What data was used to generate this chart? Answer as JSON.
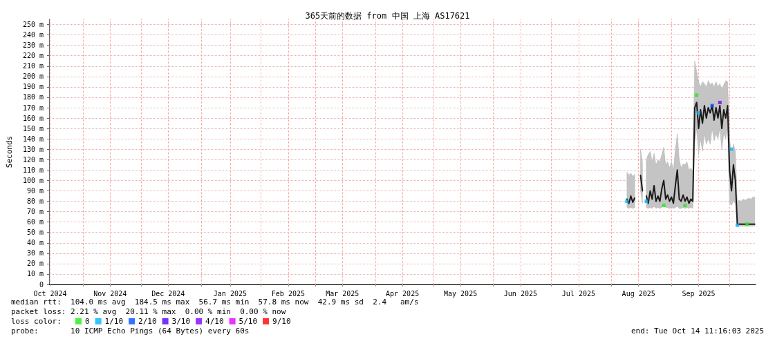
{
  "chart_data": {
    "type": "line",
    "title": "365天前的数据 from 中国 上海 AS17621",
    "ylabel": "Seconds",
    "legend_title": "loss color:",
    "annotations": [
      "median rtt:  104.0 ms avg  184.5 ms max  56.7 ms min  57.8 ms now  42.9 ms sd  2.4   am/s",
      "packet loss: 2.21 % avg  20.11 % max  0.00 % min  0.00 % now",
      "probe:       10 ICMP Echo Pings (64 Bytes) every 60s",
      "end: Tue Oct 14 11:16:03 2025"
    ],
    "xlim": [
      "2024-10-14T11:16",
      "2025-10-14T11:16"
    ],
    "xticks": [
      {
        "value": "2024-10-15",
        "label": "Oct 2024"
      },
      {
        "value": "2024-11-01",
        "label": null
      },
      {
        "value": "2024-11-15",
        "label": "Nov 2024"
      },
      {
        "value": "2024-12-01",
        "label": null
      },
      {
        "value": "2024-12-15",
        "label": "Dec 2024"
      },
      {
        "value": "2025-01-01",
        "label": null
      },
      {
        "value": "2025-01-16",
        "label": "Jan 2025"
      },
      {
        "value": "2025-02-01",
        "label": null
      },
      {
        "value": "2025-02-15",
        "label": "Feb 2025"
      },
      {
        "value": "2025-03-01",
        "label": null
      },
      {
        "value": "2025-03-15",
        "label": "Mar 2025"
      },
      {
        "value": "2025-04-01",
        "label": null
      },
      {
        "value": "2025-04-15",
        "label": "Apr 2025"
      },
      {
        "value": "2025-05-01",
        "label": null
      },
      {
        "value": "2025-05-15",
        "label": "May 2025"
      },
      {
        "value": "2025-06-01",
        "label": null
      },
      {
        "value": "2025-06-15",
        "label": "Jun 2025"
      },
      {
        "value": "2025-07-01",
        "label": null
      },
      {
        "value": "2025-07-15",
        "label": "Jul 2025"
      },
      {
        "value": "2025-08-01",
        "label": null
      },
      {
        "value": "2025-08-15",
        "label": "Aug 2025"
      },
      {
        "value": "2025-09-01",
        "label": null
      },
      {
        "value": "2025-09-15",
        "label": "Sep 2025"
      },
      {
        "value": "2025-10-01",
        "label": null
      }
    ],
    "ylim": [
      0,
      255
    ],
    "yticks": [
      0,
      {
        "value": 10,
        "label": "10 m"
      },
      {
        "value": 20,
        "label": "20 m"
      },
      {
        "value": 30,
        "label": "30 m"
      },
      {
        "value": 40,
        "label": "40 m"
      },
      {
        "value": 50,
        "label": "50 m"
      },
      {
        "value": 60,
        "label": "60 m"
      },
      {
        "value": 70,
        "label": "70 m"
      },
      {
        "value": 80,
        "label": "80 m"
      },
      {
        "value": 90,
        "label": "90 m"
      },
      {
        "value": 100,
        "label": "100 m"
      },
      {
        "value": 110,
        "label": "110 m"
      },
      {
        "value": 120,
        "label": "120 m"
      },
      {
        "value": 130,
        "label": "130 m"
      },
      {
        "value": 140,
        "label": "140 m"
      },
      {
        "value": 150,
        "label": "150 m"
      },
      {
        "value": 160,
        "label": "160 m"
      },
      {
        "value": 170,
        "label": "170 m"
      },
      {
        "value": 180,
        "label": "180 m"
      },
      {
        "value": 190,
        "label": "190 m"
      },
      {
        "value": 200,
        "label": "200 m"
      },
      {
        "value": 210,
        "label": "210 m"
      },
      {
        "value": 220,
        "label": "220 m"
      },
      {
        "value": 230,
        "label": "230 m"
      },
      {
        "value": 240,
        "label": "240 m"
      },
      {
        "value": 250,
        "label": "250 m"
      }
    ],
    "grid": true,
    "legend": "bottom left",
    "series": [
      {
        "color": "#1a1a1a",
        "line_style": "solid",
        "marker": "none",
        "x": [
          "2025-08-09",
          "2025-08-10",
          "2025-08-11",
          "2025-08-12",
          "2025-08-13",
          "2025-08-14",
          "2025-08-15",
          "2025-08-16",
          "2025-08-17",
          "2025-08-18",
          "2025-08-19",
          "2025-08-20",
          "2025-08-21",
          "2025-08-22",
          "2025-08-23",
          "2025-08-24",
          "2025-08-25",
          "2025-08-26",
          "2025-08-27",
          "2025-08-28",
          "2025-08-29",
          "2025-08-30",
          "2025-08-31",
          "2025-09-01",
          "2025-09-02",
          "2025-09-03",
          "2025-09-04",
          "2025-09-05",
          "2025-09-06",
          "2025-09-07",
          "2025-09-08",
          "2025-09-09",
          "2025-09-10",
          "2025-09-11",
          "2025-09-12",
          "2025-09-13",
          "2025-09-14",
          "2025-09-15",
          "2025-09-16",
          "2025-09-17",
          "2025-09-18",
          "2025-09-19",
          "2025-09-20",
          "2025-09-21",
          "2025-09-22",
          "2025-09-23",
          "2025-09-24",
          "2025-09-25",
          "2025-09-26",
          "2025-09-27",
          "2025-09-28",
          "2025-09-29",
          "2025-09-30",
          "2025-10-01",
          "2025-10-02",
          "2025-10-03",
          "2025-10-04",
          "2025-10-05",
          "2025-10-06",
          "2025-10-07",
          "2025-10-08",
          "2025-10-09",
          "2025-10-10",
          "2025-10-11",
          "2025-10-12",
          "2025-10-13",
          "2025-10-14"
        ],
        "values": [
          82,
          78,
          85,
          79,
          83,
          null,
          null,
          105,
          90,
          null,
          85,
          78,
          90,
          82,
          95,
          80,
          85,
          80,
          92,
          100,
          82,
          86,
          80,
          84,
          78,
          95,
          110,
          82,
          80,
          86,
          80,
          84,
          78,
          82,
          80,
          170,
          175,
          150,
          168,
          155,
          172,
          160,
          170,
          165,
          172,
          158,
          170,
          160,
          172,
          150,
          168,
          160,
          172,
          110,
          90,
          115,
          100,
          58,
          58,
          58,
          58,
          58,
          58,
          58,
          58,
          58,
          58
        ],
        "lower": [
          74,
          73,
          74,
          73,
          74,
          null,
          null,
          90,
          78,
          null,
          74,
          73,
          74,
          73,
          75,
          73,
          74,
          73,
          74,
          76,
          74,
          74,
          73,
          74,
          73,
          74,
          75,
          73,
          73,
          74,
          73,
          74,
          73,
          74,
          73,
          135,
          150,
          125,
          140,
          128,
          145,
          135,
          140,
          135,
          150,
          138,
          145,
          140,
          150,
          130,
          145,
          140,
          150,
          78,
          76,
          80,
          78,
          56,
          56,
          56,
          56,
          56,
          56,
          56,
          56,
          56,
          56
        ],
        "upper": [
          108,
          105,
          107,
          104,
          106,
          null,
          null,
          130,
          118,
          null,
          120,
          125,
          128,
          118,
          126,
          115,
          120,
          118,
          125,
          132,
          115,
          118,
          112,
          118,
          110,
          130,
          145,
          120,
          112,
          116,
          115,
          118,
          110,
          112,
          108,
          215,
          205,
          195,
          190,
          195,
          193,
          190,
          196,
          192,
          194,
          190,
          195,
          190,
          193,
          188,
          192,
          196,
          195,
          140,
          125,
          135,
          128,
          80,
          81,
          80,
          82,
          81,
          82,
          83,
          82,
          84,
          84
        ]
      },
      {
        "type": "scatter",
        "name": "0",
        "color": "#22ee11",
        "marker": "square",
        "x": [
          "2025-08-28",
          "2025-09-08",
          "2025-09-14",
          "2025-10-10"
        ],
        "values": [
          76,
          76,
          182,
          58
        ]
      },
      {
        "type": "scatter",
        "name": "1/10",
        "color": "#00b4ff",
        "marker": "square",
        "x": [
          "2025-08-09",
          "2025-08-19",
          "2025-09-15",
          "2025-10-02",
          "2025-10-05"
        ],
        "values": [
          80,
          80,
          165,
          130,
          57
        ]
      },
      {
        "type": "scatter",
        "name": "2/10",
        "color": "#0050ff",
        "marker": "square",
        "x": [
          "2025-09-22"
        ],
        "values": [
          172
        ]
      },
      {
        "type": "scatter",
        "name": "3/10",
        "color": "#5500ff",
        "marker": "square"
      },
      {
        "type": "scatter",
        "name": "4/10",
        "color": "#8000ff",
        "marker": "square",
        "x": [
          "2025-09-26"
        ],
        "values": [
          175
        ]
      },
      {
        "type": "scatter",
        "name": "5/10",
        "color": "#e000ff",
        "marker": "square"
      },
      {
        "type": "scatter",
        "name": "9/10",
        "color": "#ff0000",
        "marker": "square"
      }
    ]
  }
}
